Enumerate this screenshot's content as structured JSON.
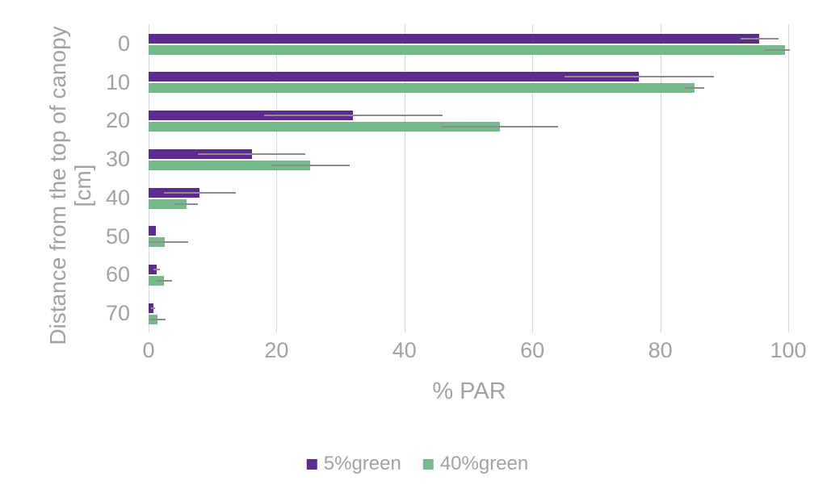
{
  "chart_data": {
    "type": "bar",
    "orientation": "horizontal",
    "xlabel": "% PAR",
    "ylabel": "Distance from the top of canopy [cm]",
    "ylabel_lines": [
      "Distance from the top of canopy",
      "[cm]"
    ],
    "categories": [
      "0",
      "10",
      "20",
      "30",
      "40",
      "50",
      "60",
      "70"
    ],
    "x_ticks": [
      0,
      20,
      40,
      60,
      80,
      100
    ],
    "xlim": [
      0,
      100
    ],
    "grid": "vertical",
    "legend_position": "bottom",
    "series": [
      {
        "name": "5%green",
        "color": "#5C2B8E",
        "values": [
          95.5,
          76.7,
          32.0,
          16.1,
          8.0,
          1.1,
          1.3,
          0.7
        ],
        "errors": [
          3.0,
          11.7,
          14.0,
          8.4,
          5.6,
          0,
          0.5,
          0.3
        ]
      },
      {
        "name": "40%green",
        "color": "#74BA8A",
        "values": [
          99.5,
          85.4,
          54.9,
          25.3,
          5.9,
          2.5,
          2.4,
          1.4
        ],
        "errors": [
          3.1,
          1.5,
          9.1,
          6.1,
          1.8,
          3.7,
          1.3,
          1.3
        ]
      }
    ],
    "error_bar_color": "#8C8C8C",
    "gridline_color": "#D8D8D8",
    "text_color": "#A2A2A2"
  }
}
